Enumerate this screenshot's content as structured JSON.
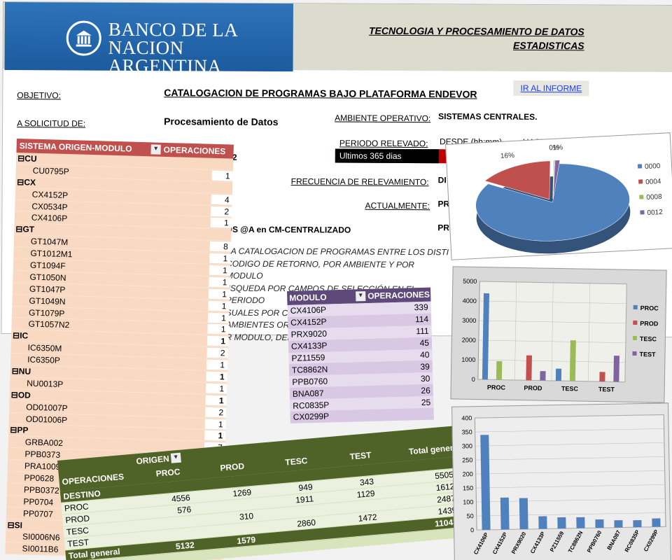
{
  "header": {
    "bank_name_line1": "BANCO DE LA",
    "bank_name_line2": "NACION ARGENTINA",
    "dept_line1": "TECNOLOGIA Y PROCESAMIENTO DE DATOS",
    "dept_line2": "ESTADISTICAS"
  },
  "form": {
    "objetivo_label": "OBJETIVO:",
    "title": "CATALOGACION DE PROGRAMAS BAJO PLATAFORMA ENDEVOR",
    "link_label": "IR AL INFORME",
    "solicitud_label": "A SOLICITUD DE:",
    "solicitud_value": "Procesamiento de Datos",
    "ambiente_label": "AMBIENTE OPERATIVO:",
    "ambiente_value": "SISTEMAS CENTRALES.",
    "periodo_label": "PERIODO RELEVADO:",
    "desde_label": "DESDE (hh:mm)",
    "hasta_label": "HASTA (hh:mm)",
    "periodo_value": "Ultimos 365 dias",
    "frecuencia_label": "FRECUENCIA DE RELEVAMIENTO:",
    "frecuencia_value": "DI",
    "actualmente_label": "ACTUALMENTE:",
    "actualmente_value": "PR",
    "pr2": "PR",
    "ds_text": "DS @A en CM-CENTRALIZADO",
    "num_2": "2",
    "body_lines": [
      "LA CATALOGACION DE PROGRAMAS ENTRE LOS DISTI",
      "CODIGO DE RETORNO, POR AMBIENTE Y POR MODULO",
      "JSQUEDA POR CAMPOS DE SELECCIÓN EN EL PERIODO",
      "SUALES POR CODIGO DE RETORNO",
      "AMBIENTES ORIGEN-DESTINO",
      "R MODULO, DEL"
    ]
  },
  "pivot1": {
    "col1": "SISTEMA ORIGEN-MODULO",
    "col2": "OPERACIONES",
    "rows": [
      {
        "name": "CU",
        "value": "",
        "group": true
      },
      {
        "name": "CU0795P",
        "value": "1",
        "group": false
      },
      {
        "name": "CX",
        "value": "",
        "group": true
      },
      {
        "name": "CX4152P",
        "value": "4",
        "group": false
      },
      {
        "name": "CX0534P",
        "value": "2",
        "group": false
      },
      {
        "name": "CX4106P",
        "value": "1",
        "group": false
      },
      {
        "name": "GT",
        "value": "",
        "group": true
      },
      {
        "name": "GT1047M",
        "value": "8",
        "group": false
      },
      {
        "name": "GT1012M1",
        "value": "1",
        "group": false
      },
      {
        "name": "GT1094F",
        "value": "1",
        "group": false
      },
      {
        "name": "GT1050N",
        "value": "1",
        "group": false
      },
      {
        "name": "GT1047P",
        "value": "1",
        "group": false
      },
      {
        "name": "GT1049N",
        "value": "1",
        "group": false
      },
      {
        "name": "GT1079P",
        "value": "1",
        "group": false
      },
      {
        "name": "GT1057N2",
        "value": "1",
        "group": false
      },
      {
        "name": "IC",
        "value": "1",
        "group": true
      },
      {
        "name": "IC6350M",
        "value": "2",
        "group": false
      },
      {
        "name": "IC6350P",
        "value": "1",
        "group": false
      },
      {
        "name": "NU",
        "value": "1",
        "group": true
      },
      {
        "name": "NU0013P",
        "value": "1",
        "group": false
      },
      {
        "name": "OD",
        "value": "1",
        "group": true
      },
      {
        "name": "OD01007P",
        "value": "2",
        "group": false
      },
      {
        "name": "OD01006P",
        "value": "1",
        "group": false
      },
      {
        "name": "PP",
        "value": "1",
        "group": true
      },
      {
        "name": "GRBA002",
        "value": "7",
        "group": false
      },
      {
        "name": "PPB0373",
        "value": "1",
        "group": false
      },
      {
        "name": "PRA1009",
        "value": "1",
        "group": false
      },
      {
        "name": "PP0628",
        "value": "",
        "group": false
      },
      {
        "name": "PPB0372",
        "value": "",
        "group": false
      },
      {
        "name": "PP0704",
        "value": "",
        "group": false
      },
      {
        "name": "PP0707",
        "value": "",
        "group": false
      },
      {
        "name": "SI",
        "value": "",
        "group": true
      },
      {
        "name": "SI0006N6",
        "value": "",
        "group": false
      },
      {
        "name": "SI0011B6",
        "value": "1",
        "group": false
      }
    ]
  },
  "pivot2": {
    "col1": "MODULO",
    "col2": "OPERACIONES",
    "rows": [
      {
        "name": "CX4106P",
        "value": "339"
      },
      {
        "name": "CX4152P",
        "value": "114"
      },
      {
        "name": "PRX9020",
        "value": "111"
      },
      {
        "name": "CX4133P",
        "value": "45"
      },
      {
        "name": "PZ11559",
        "value": "40"
      },
      {
        "name": "TC8862N",
        "value": "39"
      },
      {
        "name": "PPB0760",
        "value": "30"
      },
      {
        "name": "BNA087",
        "value": "26"
      },
      {
        "name": "RC0835P",
        "value": "25"
      },
      {
        "name": "CX0299P",
        "value": ""
      }
    ]
  },
  "pivot3": {
    "corner1": "OPERACIONES",
    "corner2": "DESTINO",
    "origen_label": "ORIGEN",
    "cols": [
      "PROC",
      "PROD",
      "TESC",
      "TEST",
      "Total general"
    ],
    "rows": [
      {
        "name": "PROC",
        "cells": [
          "",
          "4556",
          "1269",
          "949",
          "343",
          "5505"
        ]
      },
      {
        "name": "PROD",
        "cells": [
          "",
          "576",
          "",
          "1911",
          "1129",
          "1612"
        ]
      },
      {
        "name": "TESC",
        "cells": [
          "",
          "",
          "310",
          "",
          "",
          "2487"
        ]
      },
      {
        "name": "TEST",
        "cells": [
          "",
          "",
          "",
          "2860",
          "1472",
          "1439"
        ]
      },
      {
        "name": "Total general",
        "cells": [
          "",
          "5132",
          "1579",
          "",
          "",
          "11043"
        ]
      }
    ]
  },
  "chart_data": [
    {
      "type": "pie",
      "categories": [
        "0000",
        "0004",
        "0008",
        "0012"
      ],
      "values": [
        83,
        16,
        0,
        1
      ],
      "labels": [
        "83%",
        "16%",
        "0%",
        "1%"
      ],
      "colors": [
        "#4f81bd",
        "#c0504d",
        "#9bbb59",
        "#8064a2"
      ],
      "legend": "right"
    },
    {
      "type": "bar",
      "categories": [
        "PROC",
        "PROD",
        "TESC",
        "TEST"
      ],
      "series": [
        {
          "name": "PROC",
          "values": [
            4400,
            0,
            620,
            0
          ],
          "color": "#4f81bd"
        },
        {
          "name": "PROD",
          "values": [
            0,
            1270,
            0,
            490
          ],
          "color": "#c0504d"
        },
        {
          "name": "TESC",
          "values": [
            950,
            0,
            2080,
            0
          ],
          "color": "#9bbb59"
        },
        {
          "name": "TEST",
          "values": [
            0,
            480,
            0,
            1330
          ],
          "color": "#8064a2"
        }
      ],
      "ylim": [
        0,
        5000
      ],
      "yticks": [
        0,
        1000,
        2000,
        3000,
        4000,
        5000
      ],
      "legend": "right"
    },
    {
      "type": "bar",
      "categories": [
        "CX4106P",
        "CX4152P",
        "PRX9020",
        "CX4133P",
        "PZ11559",
        "TC8862N",
        "PPB0760",
        "BNA087",
        "RC0835P",
        "CX0299P"
      ],
      "values": [
        339,
        114,
        111,
        45,
        40,
        39,
        30,
        26,
        25,
        30
      ],
      "ylim": [
        0,
        400
      ],
      "yticks": [
        0,
        50,
        100,
        150,
        200,
        250,
        300,
        350,
        400
      ],
      "color": "#4f81bd"
    }
  ]
}
